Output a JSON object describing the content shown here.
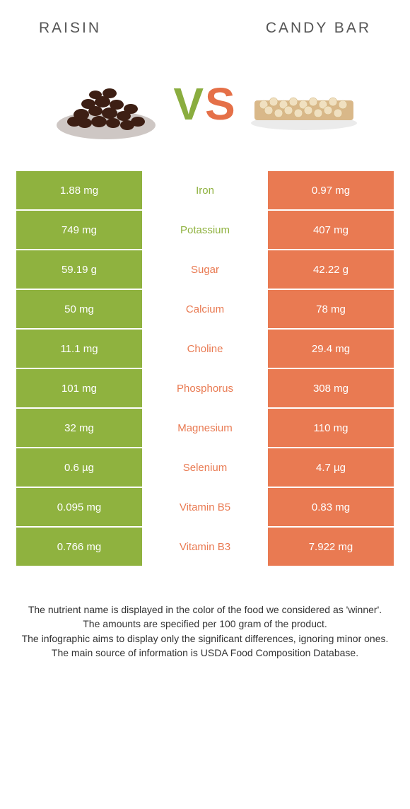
{
  "header": {
    "left_label": "RAISIN",
    "right_label": "CANDY BAR"
  },
  "vs": {
    "v": "V",
    "s": "S"
  },
  "colors": {
    "left_bg": "#8fb23f",
    "right_bg": "#e97a52",
    "left_winner_text": "#8fb23f",
    "right_winner_text": "#e97a52"
  },
  "rows": [
    {
      "left": "1.88 mg",
      "label": "Iron",
      "right": "0.97 mg",
      "winner": "left"
    },
    {
      "left": "749 mg",
      "label": "Potassium",
      "right": "407 mg",
      "winner": "left"
    },
    {
      "left": "59.19 g",
      "label": "Sugar",
      "right": "42.22 g",
      "winner": "right"
    },
    {
      "left": "50 mg",
      "label": "Calcium",
      "right": "78 mg",
      "winner": "right"
    },
    {
      "left": "11.1 mg",
      "label": "Choline",
      "right": "29.4 mg",
      "winner": "right"
    },
    {
      "left": "101 mg",
      "label": "Phosphorus",
      "right": "308 mg",
      "winner": "right"
    },
    {
      "left": "32 mg",
      "label": "Magnesium",
      "right": "110 mg",
      "winner": "right"
    },
    {
      "left": "0.6 µg",
      "label": "Selenium",
      "right": "4.7 µg",
      "winner": "right"
    },
    {
      "left": "0.095 mg",
      "label": "Vitamin B5",
      "right": "0.83 mg",
      "winner": "right"
    },
    {
      "left": "0.766 mg",
      "label": "Vitamin B3",
      "right": "7.922 mg",
      "winner": "right"
    }
  ],
  "footer": {
    "line1": "The nutrient name is displayed in the color of the food we considered as 'winner'.",
    "line2": "The amounts are specified per 100 gram of the product.",
    "line3": "The infographic aims to display only the significant differences, ignoring minor ones.",
    "line4": "The main source of information is USDA Food Composition Database."
  }
}
